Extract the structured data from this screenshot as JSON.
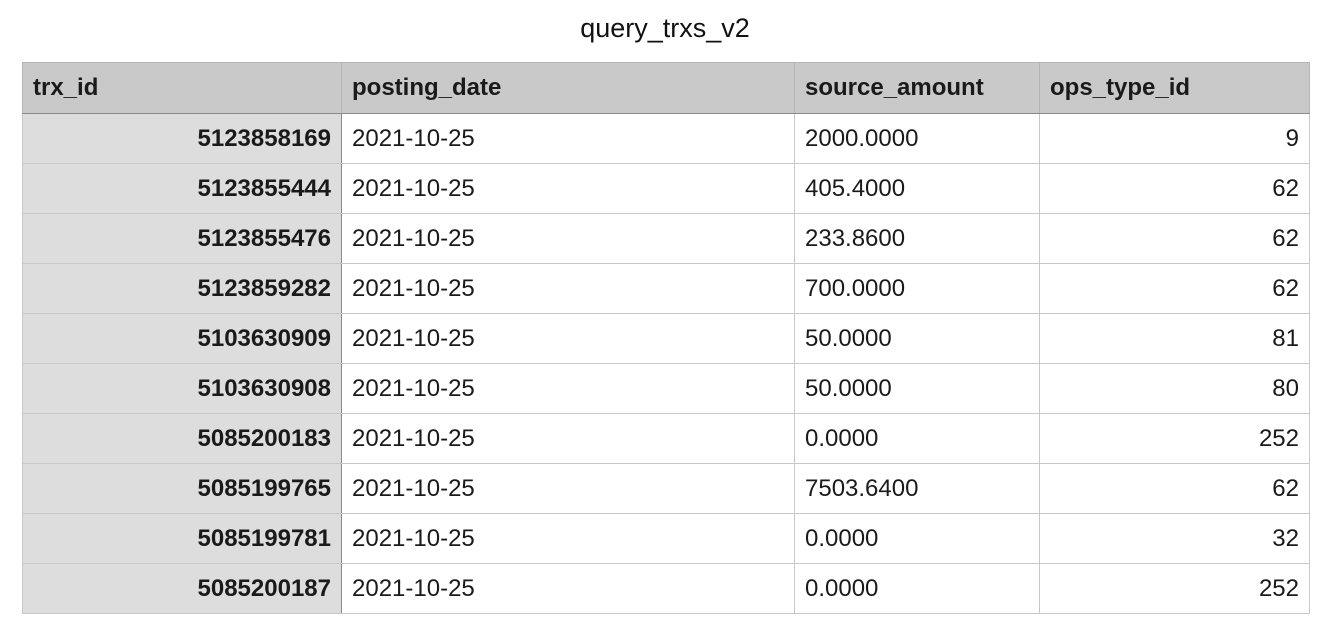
{
  "title": "query_trxs_v2",
  "table": {
    "columns": [
      "trx_id",
      "posting_date",
      "source_amount",
      "ops_type_id"
    ],
    "rows": [
      [
        "5123858169",
        "2021-10-25",
        "2000.0000",
        "9"
      ],
      [
        "5123855444",
        "2021-10-25",
        "405.4000",
        "62"
      ],
      [
        "5123855476",
        "2021-10-25",
        "233.8600",
        "62"
      ],
      [
        "5123859282",
        "2021-10-25",
        "700.0000",
        "62"
      ],
      [
        "5103630909",
        "2021-10-25",
        "50.0000",
        "81"
      ],
      [
        "5103630908",
        "2021-10-25",
        "50.0000",
        "80"
      ],
      [
        "5085200183",
        "2021-10-25",
        "0.0000",
        "252"
      ],
      [
        "5085199765",
        "2021-10-25",
        "7503.6400",
        "62"
      ],
      [
        "5085199781",
        "2021-10-25",
        "0.0000",
        "32"
      ],
      [
        "5085200187",
        "2021-10-25",
        "0.0000",
        "252"
      ]
    ]
  }
}
